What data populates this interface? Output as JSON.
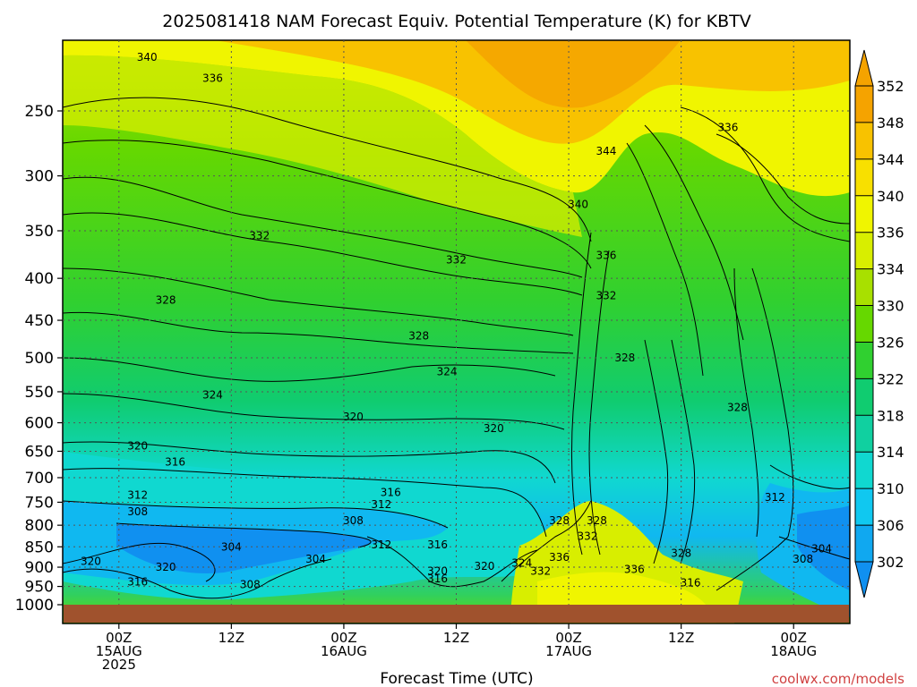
{
  "chart_data": {
    "type": "heatmap",
    "title": "2025081418 NAM Forecast Equiv. Potential Temperature (K) for KBTV",
    "xlabel": "Forecast Time (UTC)",
    "ylabel": "",
    "credit": "coolwx.com/models",
    "x_ticks": [
      {
        "hours": 6,
        "lines": [
          "00Z",
          "15AUG",
          "2025"
        ]
      },
      {
        "hours": 18,
        "lines": [
          "12Z"
        ]
      },
      {
        "hours": 30,
        "lines": [
          "00Z",
          "16AUG"
        ]
      },
      {
        "hours": 42,
        "lines": [
          "12Z"
        ]
      },
      {
        "hours": 54,
        "lines": [
          "00Z",
          "17AUG"
        ]
      },
      {
        "hours": 66,
        "lines": [
          "12Z"
        ]
      },
      {
        "hours": 78,
        "lines": [
          "00Z",
          "18AUG"
        ]
      }
    ],
    "y_ticks": [
      250,
      300,
      350,
      400,
      450,
      500,
      550,
      600,
      650,
      700,
      750,
      800,
      850,
      900,
      950,
      1000
    ],
    "xlim_hours": [
      0,
      84
    ],
    "colorbar": {
      "ticks": [
        352,
        348,
        344,
        340,
        336,
        334,
        330,
        326,
        322,
        318,
        314,
        310,
        306,
        302
      ],
      "colors": {
        "352": "#f5a300",
        "348": "#f8c200",
        "344": "#f8e000",
        "340": "#f0f500",
        "336": "#d8ee00",
        "334": "#a8e000",
        "330": "#66d800",
        "326": "#30d030",
        "322": "#10cc70",
        "318": "#10d0a0",
        "314": "#10d8d0",
        "310": "#10c8f0",
        "306": "#10a8f0",
        "302": "#1090f0"
      }
    },
    "contour_labels": [
      {
        "text": "340",
        "t": 9,
        "p": 215
      },
      {
        "text": "336",
        "t": 16,
        "p": 228
      },
      {
        "text": "336",
        "t": 71,
        "p": 262
      },
      {
        "text": "344",
        "t": 58,
        "p": 280
      },
      {
        "text": "340",
        "t": 55,
        "p": 325
      },
      {
        "text": "336",
        "t": 58,
        "p": 375
      },
      {
        "text": "332",
        "t": 21,
        "p": 355
      },
      {
        "text": "332",
        "t": 42,
        "p": 380
      },
      {
        "text": "332",
        "t": 58,
        "p": 420
      },
      {
        "text": "328",
        "t": 11,
        "p": 425
      },
      {
        "text": "328",
        "t": 38,
        "p": 470
      },
      {
        "text": "328",
        "t": 60,
        "p": 500
      },
      {
        "text": "328",
        "t": 72,
        "p": 575
      },
      {
        "text": "324",
        "t": 41,
        "p": 520
      },
      {
        "text": "324",
        "t": 16,
        "p": 555
      },
      {
        "text": "320",
        "t": 31,
        "p": 590
      },
      {
        "text": "320",
        "t": 46,
        "p": 610
      },
      {
        "text": "320",
        "t": 8,
        "p": 640
      },
      {
        "text": "316",
        "t": 12,
        "p": 670
      },
      {
        "text": "316",
        "t": 35,
        "p": 730
      },
      {
        "text": "312",
        "t": 8,
        "p": 735
      },
      {
        "text": "312",
        "t": 34,
        "p": 755
      },
      {
        "text": "312",
        "t": 76,
        "p": 740
      },
      {
        "text": "308",
        "t": 8,
        "p": 770
      },
      {
        "text": "308",
        "t": 31,
        "p": 790
      },
      {
        "text": "304",
        "t": 18,
        "p": 850
      },
      {
        "text": "304",
        "t": 27,
        "p": 880
      },
      {
        "text": "304",
        "t": 81,
        "p": 855
      },
      {
        "text": "312",
        "t": 34,
        "p": 845
      },
      {
        "text": "316",
        "t": 40,
        "p": 845
      },
      {
        "text": "320",
        "t": 3,
        "p": 885
      },
      {
        "text": "320",
        "t": 11,
        "p": 900
      },
      {
        "text": "316",
        "t": 8,
        "p": 938
      },
      {
        "text": "308",
        "t": 20,
        "p": 945
      },
      {
        "text": "320",
        "t": 40,
        "p": 910
      },
      {
        "text": "316",
        "t": 40,
        "p": 930
      },
      {
        "text": "320",
        "t": 45,
        "p": 898
      },
      {
        "text": "324",
        "t": 49,
        "p": 890
      },
      {
        "text": "332",
        "t": 51,
        "p": 910
      },
      {
        "text": "336",
        "t": 53,
        "p": 875
      },
      {
        "text": "336",
        "t": 61,
        "p": 905
      },
      {
        "text": "328",
        "t": 53,
        "p": 790
      },
      {
        "text": "328",
        "t": 57,
        "p": 790
      },
      {
        "text": "332",
        "t": 56,
        "p": 825
      },
      {
        "text": "328",
        "t": 66,
        "p": 865
      },
      {
        "text": "308",
        "t": 79,
        "p": 880
      },
      {
        "text": "316",
        "t": 67,
        "p": 940
      }
    ]
  }
}
